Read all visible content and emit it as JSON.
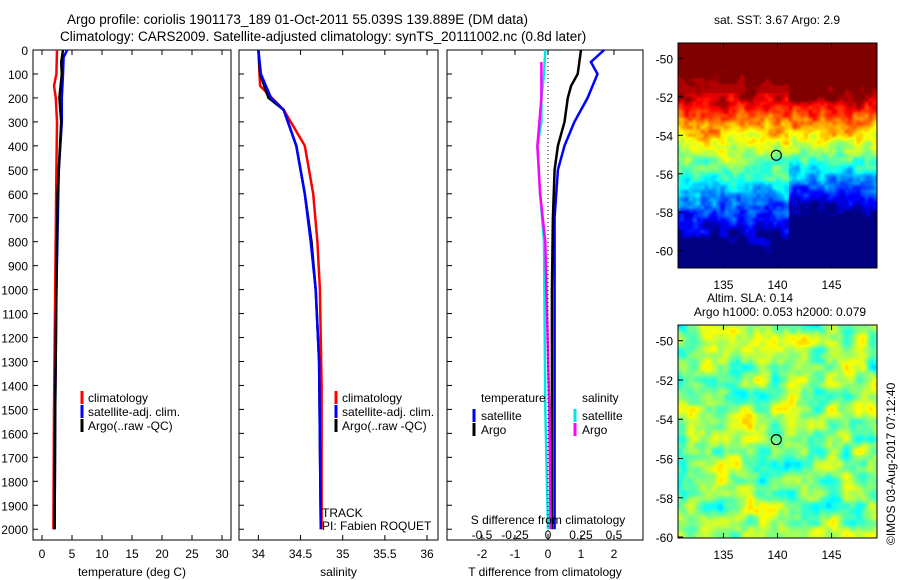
{
  "title": {
    "line1": "Argo profile: coriolis 1901173_189 01-Oct-2011 55.039S 139.889E (DM data)",
    "line2": "Climatology: CARS2009. Satellite-adjusted climatology: synTS_20111002.nc (0.8d later)"
  },
  "credit": "©IMOS 03-Aug-2017 07:12:40",
  "chart_data": [
    {
      "type": "line",
      "id": "temp",
      "xlabel": "temperature (deg C)",
      "ylabel": "depth",
      "xlim": [
        -1.5,
        31.5
      ],
      "ylim": [
        2045,
        0
      ],
      "xticks": [
        0,
        5,
        10,
        15,
        20,
        25,
        30
      ],
      "yticks": [
        0,
        100,
        200,
        300,
        400,
        500,
        600,
        700,
        800,
        900,
        1000,
        1100,
        1200,
        1300,
        1400,
        1500,
        1600,
        1700,
        1800,
        1900,
        2000
      ],
      "legend": [
        "climatology",
        "satellite-adj. clim.",
        "Argo(..raw -QC)"
      ],
      "series": [
        {
          "name": "climatology",
          "color": "#ff0000",
          "depth": [
            0,
            100,
            150,
            200,
            300,
            500,
            1000,
            1500,
            2000
          ],
          "values": [
            2.5,
            2.4,
            2.0,
            2.3,
            2.5,
            2.4,
            2.2,
            2.0,
            1.9
          ]
        },
        {
          "name": "satellite-adj. clim.",
          "color": "#0000ff",
          "depth": [
            0,
            30,
            100,
            200,
            300,
            500,
            1000,
            1500,
            2000
          ],
          "values": [
            4.2,
            3.6,
            3.5,
            3.3,
            3.3,
            2.8,
            2.4,
            2.2,
            2.1
          ]
        },
        {
          "name": "Argo(..raw -QC)",
          "color": "#000000",
          "depth": [
            0,
            50,
            100,
            200,
            300,
            600,
            1000,
            1500,
            2000
          ],
          "values": [
            3.5,
            3.2,
            3.3,
            2.9,
            3.2,
            2.6,
            2.4,
            2.2,
            2.1
          ]
        }
      ]
    },
    {
      "type": "line",
      "id": "sal",
      "xlabel": "salinity",
      "xlim": [
        33.77,
        36.13
      ],
      "ylim": [
        2045,
        0
      ],
      "xticks": [
        34,
        34.5,
        35,
        35.5,
        36
      ],
      "legend": [
        "climatology",
        "satellite-adj. clim.",
        "Argo(..raw -QC)"
      ],
      "annotation": [
        "TRACK",
        "PI: Fabien ROQUET"
      ],
      "series": [
        {
          "name": "climatology",
          "color": "#ff0000",
          "depth": [
            0,
            150,
            250,
            400,
            600,
            800,
            1000,
            1400,
            2000
          ],
          "values": [
            34.0,
            34.02,
            34.3,
            34.55,
            34.65,
            34.7,
            34.73,
            34.75,
            34.75
          ]
        },
        {
          "name": "Argo(..raw -QC)",
          "color": "#000000",
          "depth": [
            0,
            100,
            200,
            250,
            400,
            600,
            800,
            1000,
            1300,
            2000
          ],
          "values": [
            34.0,
            34.02,
            34.12,
            34.3,
            34.45,
            34.55,
            34.63,
            34.68,
            34.72,
            34.74
          ]
        },
        {
          "name": "satellite-adj. clim.",
          "color": "#0000ff",
          "depth": [
            0,
            100,
            200,
            250,
            400,
            600,
            800,
            1000,
            1300,
            2000
          ],
          "values": [
            34.0,
            34.03,
            34.15,
            34.3,
            34.45,
            34.55,
            34.62,
            34.68,
            34.72,
            34.74
          ]
        }
      ]
    },
    {
      "type": "line",
      "id": "diff",
      "xlabel": "T difference from climatology",
      "x2label": "S difference from climatology",
      "xlim": [
        -3.06,
        2.88
      ],
      "x2lim": [
        -0.765,
        0.72
      ],
      "ylim": [
        2045,
        0
      ],
      "xticks": [
        -2,
        -1,
        0,
        1,
        2
      ],
      "x2ticks": [
        "-0.5",
        "-0.25",
        "0",
        "0.25",
        "0.5"
      ],
      "legend_t": {
        "title": "temperature",
        "items": [
          "satellite",
          "Argo"
        ]
      },
      "legend_s": {
        "title": "salinity",
        "items": [
          "satellite",
          "Argo"
        ]
      },
      "series": [
        {
          "name": "T satellite",
          "color": "#0000ff",
          "axis": "T",
          "depth": [
            0,
            50,
            100,
            200,
            300,
            400,
            500,
            700,
            1000,
            2000
          ],
          "values": [
            1.7,
            1.3,
            1.5,
            1.2,
            0.8,
            0.5,
            0.3,
            0.2,
            0.2,
            0.2
          ]
        },
        {
          "name": "T Argo",
          "color": "#000000",
          "axis": "T",
          "depth": [
            0,
            100,
            150,
            200,
            300,
            400,
            500,
            700,
            1000,
            2000
          ],
          "values": [
            1.0,
            0.9,
            0.7,
            0.6,
            0.5,
            0.3,
            0.2,
            0.15,
            0.12,
            0.12
          ]
        },
        {
          "name": "S satellite",
          "color": "#00e5e5",
          "axis": "S",
          "depth": [
            0,
            100,
            200,
            300,
            400,
            600,
            800,
            1500,
            2000
          ],
          "values": [
            -0.02,
            -0.03,
            -0.05,
            -0.05,
            -0.08,
            -0.06,
            -0.03,
            -0.02,
            0.0
          ]
        },
        {
          "name": "S Argo",
          "color": "#ff00ff",
          "axis": "S",
          "depth": [
            50,
            100,
            200,
            400,
            600,
            800,
            1500,
            2000
          ],
          "values": [
            -0.05,
            -0.05,
            -0.05,
            -0.08,
            -0.06,
            -0.02,
            0.01,
            0.02
          ]
        }
      ]
    },
    {
      "type": "heatmap",
      "id": "sst",
      "title": "sat. SST: 3.67 Argo: 2.9",
      "xlim": [
        130.8,
        149.2
      ],
      "ylim": [
        -60.9,
        -49.2
      ],
      "xticks": [
        135,
        140,
        145
      ],
      "yticks": [
        -50,
        -52,
        -54,
        -56,
        -58,
        -60
      ],
      "marker": {
        "lon": 139.889,
        "lat": -55.039
      }
    },
    {
      "type": "heatmap",
      "id": "sla",
      "title": "Altim. SLA: 0.14",
      "subtitle": "Argo h1000: 0.053 h2000: 0.079",
      "xlim": [
        130.8,
        149.2
      ],
      "ylim": [
        -60.05,
        -49.2
      ],
      "xticks": [
        135,
        140,
        145
      ],
      "yticks": [
        -50,
        -52,
        -54,
        -56,
        -58,
        -60
      ],
      "marker": {
        "lon": 139.889,
        "lat": -55.039
      }
    }
  ]
}
